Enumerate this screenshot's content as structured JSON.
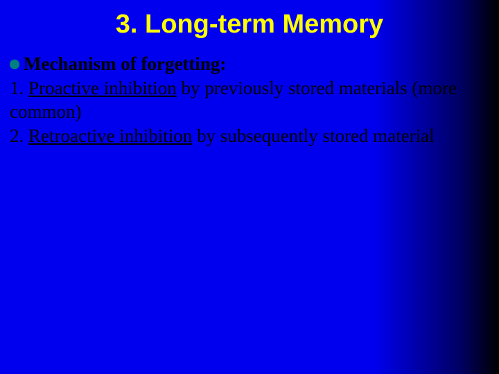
{
  "slide": {
    "title": "3. Long-term Memory",
    "bullet_heading": "Mechanism of forgetting:",
    "item1_prefix": "1. ",
    "item1_underlined": "Proactive inhibition",
    "item1_rest": " by previously stored materials (more common)",
    "item2_prefix": "2. ",
    "item2_underlined": "Retroactive inhibition",
    "item2_rest": " by subsequently stored material",
    "colors": {
      "title_color": "#ffff00",
      "bullet_color": "#008080",
      "text_color": "#000000",
      "bg_gradient_start": "#0000ee",
      "bg_gradient_end": "#000000"
    },
    "fonts": {
      "title_family": "Arial",
      "title_size_pt": 28,
      "title_weight": "bold",
      "body_family": "Times New Roman",
      "body_size_pt": 20
    }
  }
}
